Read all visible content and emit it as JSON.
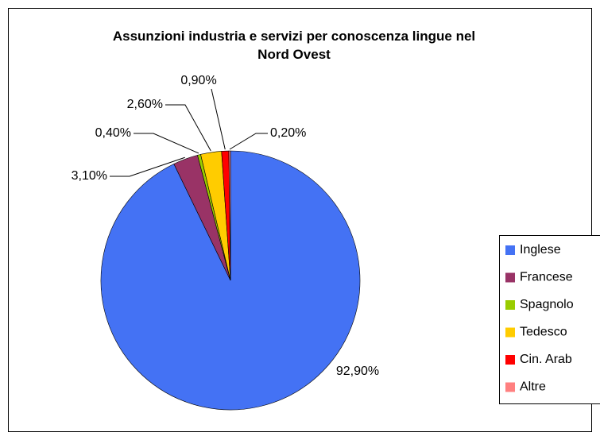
{
  "chart_data": {
    "type": "pie",
    "title": "Assunzioni industria e servizi per conoscenza lingue nel Nord Ovest",
    "categories": [
      "Inglese",
      "Francese",
      "Spagnolo",
      "Tedesco",
      "Cin. Arab",
      "Altre"
    ],
    "values": [
      92.9,
      3.1,
      0.4,
      2.6,
      0.9,
      0.2
    ],
    "value_labels": [
      "92,90%",
      "3,10%",
      "0,40%",
      "2,60%",
      "0,90%",
      "0,20%"
    ],
    "colors": [
      "#4472f4",
      "#993366",
      "#99cc00",
      "#ffcc00",
      "#ff0000",
      "#ff8080"
    ],
    "legend": "right"
  }
}
